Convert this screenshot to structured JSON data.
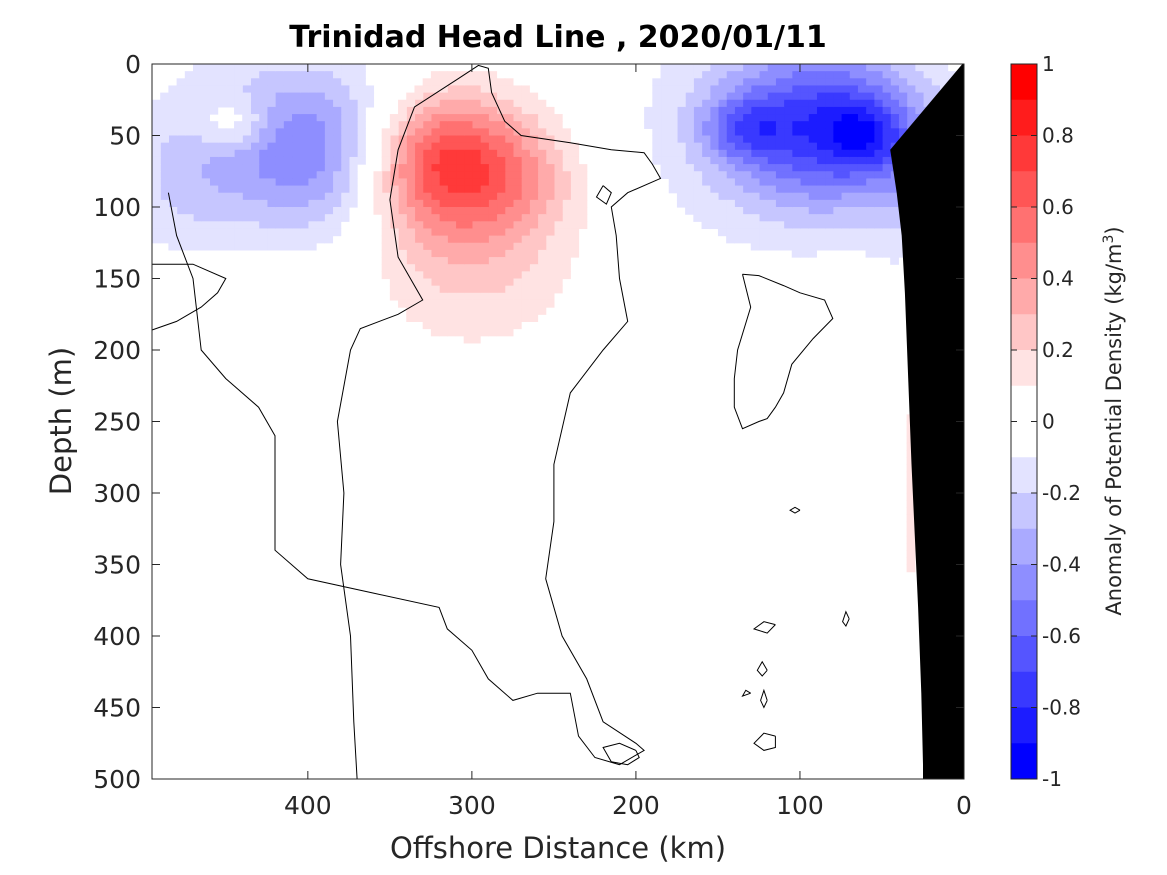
{
  "chart_data": {
    "type": "heatmap",
    "title": "Trinidad Head Line , 2020/01/11",
    "xlabel": "Offshore Distance (km)",
    "ylabel": "Depth (m)",
    "colorbar_label": "Anomaly of Potential Density (kg/m",
    "colorbar_label_sup": "3",
    "colorbar_label_close": ")",
    "xlim": [
      0,
      495
    ],
    "x_reversed": true,
    "ylim": [
      0,
      500
    ],
    "y_reversed": true,
    "clim": [
      -1,
      1
    ],
    "x_ticks": [
      400,
      300,
      200,
      100,
      0
    ],
    "x_tick_labels": [
      "400",
      "300",
      "200",
      "100",
      "0"
    ],
    "y_ticks": [
      0,
      50,
      100,
      150,
      200,
      250,
      300,
      350,
      400,
      450,
      500
    ],
    "y_tick_labels": [
      "0",
      "50",
      "100",
      "150",
      "200",
      "250",
      "300",
      "350",
      "400",
      "450",
      "500"
    ],
    "colorbar_ticks": [
      1,
      0.8,
      0.6,
      0.4,
      0.2,
      0,
      -0.2,
      -0.4,
      -0.6,
      -0.8,
      -1
    ],
    "colorbar_tick_labels": [
      "1",
      "0.8",
      "0.6",
      "0.4",
      "0.2",
      "0",
      "-0.2",
      "-0.4",
      "-0.6",
      "-0.8",
      "-1"
    ],
    "colorbar_colors": [
      "#ff0000",
      "#ff1c1c",
      "#ff3939",
      "#ff5555",
      "#ff7171",
      "#ff8e8e",
      "#ffaaaa",
      "#ffc6c6",
      "#ffe3e3",
      "#ffffff",
      "#ffffff",
      "#e3e3ff",
      "#c6c6ff",
      "#aaaaff",
      "#8e8eff",
      "#7171ff",
      "#5555ff",
      "#3939ff",
      "#1c1cff",
      "#0000ff"
    ],
    "anomaly_blobs": [
      {
        "x": 80,
        "y": 45,
        "sx": 40,
        "sy": 38,
        "amp": -0.62
      },
      {
        "x": 60,
        "y": 50,
        "sx": 16,
        "sy": 16,
        "amp": -0.28
      },
      {
        "x": 135,
        "y": 45,
        "sx": 18,
        "sy": 16,
        "amp": -0.3
      },
      {
        "x": 120,
        "y": 40,
        "sx": 55,
        "sy": 60,
        "amp": -0.22
      },
      {
        "x": 30,
        "y": 90,
        "sx": 18,
        "sy": 40,
        "amp": -0.16
      },
      {
        "x": 415,
        "y": 55,
        "sx": 50,
        "sy": 42,
        "amp": -0.36
      },
      {
        "x": 445,
        "y": 42,
        "sx": 16,
        "sy": 14,
        "amp": 0.26
      },
      {
        "x": 380,
        "y": 70,
        "sx": 40,
        "sy": 40,
        "amp": -0.22
      },
      {
        "x": 480,
        "y": 90,
        "sx": 25,
        "sy": 35,
        "amp": -0.12
      },
      {
        "x": 318,
        "y": 68,
        "sx": 36,
        "sy": 34,
        "amp": 0.72
      },
      {
        "x": 300,
        "y": 125,
        "sx": 45,
        "sy": 50,
        "amp": 0.25
      },
      {
        "x": 265,
        "y": 80,
        "sx": 22,
        "sy": 25,
        "amp": 0.12
      },
      {
        "x": 33,
        "y": 300,
        "sx": 3,
        "sy": 140,
        "amp": 0.11
      },
      {
        "x": 27,
        "y": 150,
        "sx": 3,
        "sy": 25,
        "amp": 0.11
      }
    ],
    "zero_contours": [
      [
        [
          370,
          500
        ],
        [
          372,
          460
        ],
        [
          374,
          400
        ],
        [
          380,
          350
        ],
        [
          378,
          300
        ],
        [
          382,
          250
        ],
        [
          374,
          200
        ],
        [
          368,
          185
        ],
        [
          345,
          175
        ],
        [
          330,
          165
        ],
        [
          345,
          135
        ],
        [
          350,
          95
        ],
        [
          345,
          60
        ],
        [
          335,
          30
        ],
        [
          308,
          10
        ],
        [
          296,
          1
        ],
        [
          290,
          3
        ],
        [
          288,
          20
        ],
        [
          280,
          40
        ],
        [
          270,
          50
        ],
        [
          240,
          55
        ],
        [
          215,
          60
        ],
        [
          195,
          62
        ],
        [
          190,
          70
        ],
        [
          185,
          80
        ],
        [
          205,
          90
        ],
        [
          215,
          100
        ],
        [
          212,
          120
        ],
        [
          210,
          150
        ],
        [
          205,
          180
        ],
        [
          220,
          200
        ],
        [
          240,
          230
        ],
        [
          250,
          280
        ],
        [
          250,
          320
        ],
        [
          255,
          360
        ],
        [
          245,
          400
        ],
        [
          230,
          430
        ],
        [
          220,
          460
        ],
        [
          200,
          475
        ],
        [
          195,
          480
        ],
        [
          210,
          490
        ],
        [
          225,
          485
        ],
        [
          235,
          470
        ],
        [
          240,
          440
        ],
        [
          260,
          440
        ],
        [
          275,
          445
        ],
        [
          290,
          430
        ],
        [
          300,
          410
        ],
        [
          315,
          395
        ],
        [
          320,
          380
        ],
        [
          360,
          370
        ],
        [
          400,
          360
        ],
        [
          420,
          340
        ],
        [
          420,
          260
        ],
        [
          430,
          240
        ],
        [
          450,
          220
        ],
        [
          465,
          200
        ],
        [
          470,
          150
        ],
        [
          480,
          120
        ],
        [
          485,
          90
        ]
      ],
      [
        [
          495,
          186
        ],
        [
          480,
          180
        ],
        [
          465,
          170
        ],
        [
          455,
          160
        ],
        [
          450,
          150
        ],
        [
          470,
          140
        ],
        [
          495,
          140
        ]
      ],
      [
        [
          135,
          147
        ],
        [
          125,
          148
        ],
        [
          110,
          155
        ],
        [
          100,
          160
        ],
        [
          85,
          165
        ],
        [
          80,
          178
        ],
        [
          92,
          192
        ],
        [
          105,
          210
        ],
        [
          110,
          230
        ],
        [
          115,
          240
        ],
        [
          120,
          248
        ],
        [
          125,
          250
        ],
        [
          135,
          255
        ],
        [
          140,
          240
        ],
        [
          140,
          220
        ],
        [
          138,
          200
        ],
        [
          130,
          170
        ],
        [
          135,
          147
        ]
      ],
      [
        [
          220,
          85
        ],
        [
          224,
          93
        ],
        [
          218,
          98
        ],
        [
          215,
          90
        ],
        [
          220,
          85
        ]
      ],
      [
        [
          200,
          480
        ],
        [
          210,
          475
        ],
        [
          220,
          478
        ],
        [
          215,
          488
        ],
        [
          205,
          490
        ],
        [
          198,
          485
        ],
        [
          200,
          480
        ]
      ],
      [
        [
          115,
          392
        ],
        [
          122,
          390
        ],
        [
          128,
          395
        ],
        [
          120,
          398
        ],
        [
          115,
          392
        ]
      ],
      [
        [
          115,
          470
        ],
        [
          122,
          468
        ],
        [
          128,
          475
        ],
        [
          122,
          480
        ],
        [
          115,
          478
        ],
        [
          115,
          470
        ]
      ],
      [
        [
          100,
          312
        ],
        [
          103,
          310
        ],
        [
          106,
          312
        ],
        [
          103,
          314
        ],
        [
          100,
          312
        ]
      ],
      [
        [
          70,
          388
        ],
        [
          72,
          383
        ],
        [
          74,
          390
        ],
        [
          72,
          393
        ],
        [
          70,
          388
        ]
      ],
      [
        [
          120,
          424
        ],
        [
          123,
          418
        ],
        [
          126,
          424
        ],
        [
          123,
          428
        ],
        [
          120,
          424
        ]
      ],
      [
        [
          120,
          445
        ],
        [
          122,
          438
        ],
        [
          124,
          445
        ],
        [
          122,
          450
        ],
        [
          120,
          445
        ]
      ],
      [
        [
          130,
          440
        ],
        [
          133,
          438
        ],
        [
          135,
          442
        ],
        [
          130,
          440
        ]
      ]
    ],
    "coast_mask": [
      [
        0,
        0
      ],
      [
        0,
        500
      ],
      [
        25,
        500
      ],
      [
        25,
        490
      ],
      [
        26,
        440
      ],
      [
        28,
        380
      ],
      [
        30,
        330
      ],
      [
        32,
        280
      ],
      [
        34,
        220
      ],
      [
        36,
        160
      ],
      [
        38,
        120
      ],
      [
        41,
        90
      ],
      [
        45,
        60
      ],
      [
        1,
        0
      ]
    ]
  }
}
